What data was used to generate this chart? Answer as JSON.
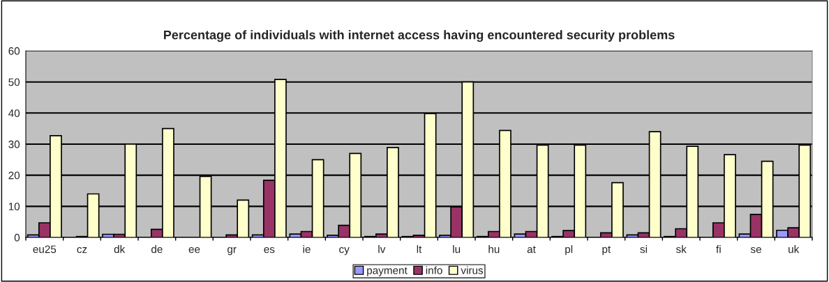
{
  "chart_data": {
    "type": "bar",
    "title": "Percentage of individuals with internet access having encountered security problems",
    "categories": [
      "eu25",
      "cz",
      "dk",
      "de",
      "ee",
      "gr",
      "es",
      "ie",
      "cy",
      "lv",
      "lt",
      "lu",
      "hu",
      "at",
      "pl",
      "pt",
      "si",
      "sk",
      "fi",
      "se",
      "uk"
    ],
    "series": [
      {
        "name": "payment",
        "color": "#9999ff",
        "values": [
          0.8,
          0,
          1,
          0,
          0,
          0,
          0.8,
          1.1,
          0.7,
          0.3,
          0.3,
          0.7,
          0.3,
          1.1,
          0.3,
          0,
          0.8,
          0.3,
          0,
          1.1,
          2.3
        ]
      },
      {
        "name": "info",
        "color": "#993366",
        "values": [
          4.7,
          0.3,
          1,
          2.6,
          0,
          0.8,
          18.4,
          1.9,
          3.9,
          1.1,
          0.7,
          9.8,
          1.9,
          1.9,
          2.2,
          1.5,
          1.5,
          2.8,
          4.7,
          7.4,
          3.1
        ]
      },
      {
        "name": "virus",
        "color": "#ffffcc",
        "values": [
          32.7,
          14,
          30,
          35,
          19.6,
          12,
          50.8,
          25,
          27,
          28.9,
          39.8,
          50,
          34.4,
          29.7,
          29.7,
          17.6,
          34,
          29.3,
          26.6,
          24.5,
          29.7
        ]
      }
    ],
    "ylim": [
      0,
      60
    ],
    "yticks": [
      0,
      10,
      20,
      30,
      40,
      50,
      60
    ],
    "grid": "y",
    "legend": "bottom"
  }
}
